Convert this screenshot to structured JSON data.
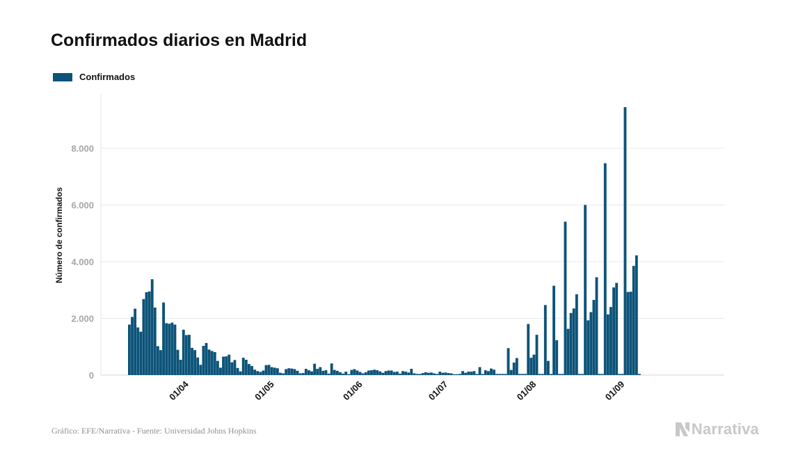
{
  "title": "Confirmados diarios en Madrid",
  "legend": {
    "label": "Confirmados",
    "color": "#0c5379"
  },
  "footer": {
    "source": "Gráfico: EFE/Narrativa - Fuente: Universidad Johns Hopkins",
    "brand": "Narrativa",
    "brand_icon": "narrativa-logo-icon"
  },
  "chart_data": {
    "type": "bar",
    "title": "Confirmados diarios en Madrid",
    "xlabel": "",
    "ylabel": "Número de confirmados",
    "ylim": [
      0,
      9500
    ],
    "yticks": [
      0,
      2000,
      4000,
      6000,
      8000
    ],
    "ytick_labels": [
      "0",
      "2.000",
      "4.000",
      "6.000",
      "8.000"
    ],
    "xtick_labels": [
      "01/04",
      "01/05",
      "01/06",
      "01/07",
      "01/08",
      "01/09"
    ],
    "xtick_days": [
      19,
      49,
      80,
      110,
      141,
      172
    ],
    "x_start_label": "13/03",
    "x_end_label": "18/09",
    "grid": true,
    "legend_position": "top-left",
    "series": [
      {
        "name": "Confirmados",
        "color": "#0c5379",
        "values": [
          1780,
          2050,
          2340,
          1680,
          1530,
          2680,
          2920,
          2950,
          3380,
          2380,
          1020,
          880,
          2560,
          1830,
          1810,
          1850,
          1780,
          890,
          540,
          1600,
          1410,
          1420,
          960,
          880,
          620,
          360,
          1030,
          1130,
          900,
          850,
          810,
          500,
          260,
          650,
          660,
          720,
          450,
          530,
          250,
          130,
          610,
          540,
          390,
          320,
          190,
          140,
          110,
          160,
          350,
          360,
          280,
          260,
          240,
          80,
          60,
          210,
          240,
          230,
          210,
          150,
          60,
          70,
          220,
          170,
          130,
          400,
          220,
          280,
          150,
          170,
          50,
          410,
          180,
          150,
          100,
          50,
          120,
          30,
          180,
          210,
          160,
          110,
          60,
          100,
          160,
          170,
          190,
          170,
          130,
          80,
          140,
          160,
          160,
          110,
          120,
          50,
          140,
          120,
          90,
          220,
          60,
          40,
          40,
          70,
          100,
          80,
          90,
          60,
          40,
          120,
          80,
          90,
          70,
          60,
          30,
          30,
          40,
          140,
          80,
          120,
          120,
          140,
          40,
          280,
          40,
          170,
          140,
          230,
          190,
          40,
          40,
          40,
          40,
          950,
          180,
          440,
          600,
          40,
          40,
          40,
          1800,
          610,
          720,
          1420,
          40,
          40,
          2470,
          500,
          40,
          3150,
          1230,
          40,
          40,
          5410,
          1630,
          2190,
          2350,
          2850,
          40,
          40,
          6000,
          1930,
          2220,
          2650,
          3450,
          40,
          40,
          7470,
          2140,
          2400,
          3090,
          3250,
          40,
          40,
          9450,
          2930,
          2940,
          3850,
          4220,
          40
        ]
      }
    ]
  }
}
